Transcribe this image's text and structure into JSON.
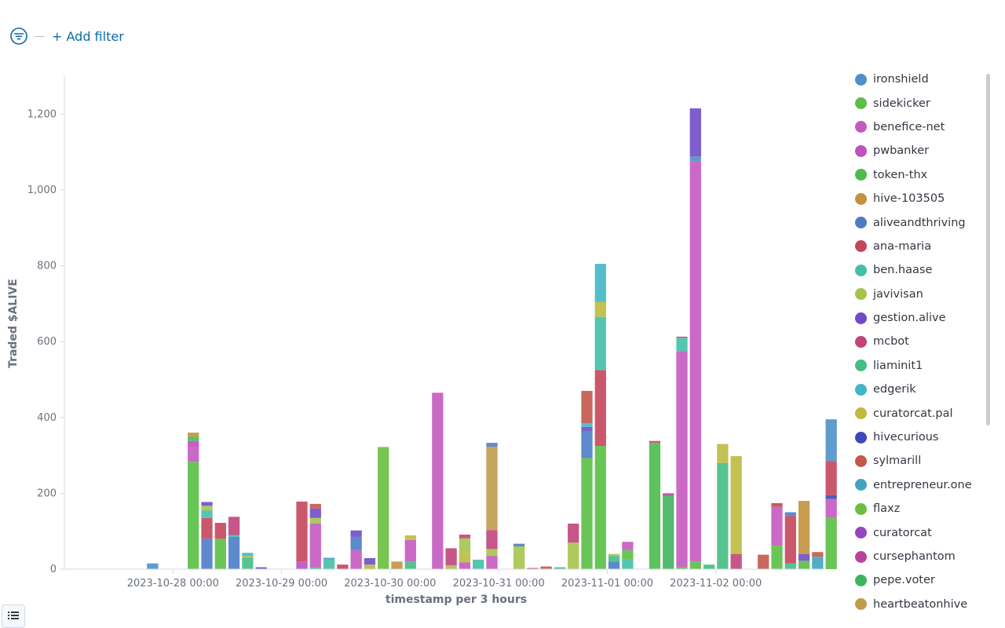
{
  "toolbar": {
    "add_filter_label": "+ Add filter"
  },
  "colors": [
    "#54B399",
    "#6092C0",
    "#D36086",
    "#9170B8",
    "#CA8EAE",
    "#D6BF57",
    "#B9A888",
    "#DA8B45",
    "#AA6556",
    "#E7664C"
  ],
  "chart_data": {
    "type": "bar",
    "stacked": true,
    "xlabel": "timestamp per 3 hours",
    "ylabel": "Traded $ALIVE",
    "ylim": [
      0,
      1300
    ],
    "y_ticks": [
      0,
      200,
      400,
      600,
      800,
      1000,
      1200
    ],
    "y_tick_labels": [
      "0",
      "200",
      "400",
      "600",
      "800",
      "1,000",
      "1,200"
    ],
    "x_start": "2023-10-27 00:00",
    "x_end": "2023-11-03 00:00",
    "x_tick_labels": [
      "2023-10-28 00:00",
      "2023-10-29 00:00",
      "2023-10-30 00:00",
      "2023-10-31 00:00",
      "2023-11-01 00:00",
      "2023-11-02 00:00"
    ],
    "legend_position": "right",
    "grid": false,
    "series": [
      {
        "name": "ironshield",
        "color": "#4E91C9"
      },
      {
        "name": "sidekicker",
        "color": "#5ABF45"
      },
      {
        "name": "benefice-net",
        "color": "#C559C0"
      },
      {
        "name": "pwbanker",
        "color": "#C04FBF"
      },
      {
        "name": "token-thx",
        "color": "#4CBC4C"
      },
      {
        "name": "hive-103505",
        "color": "#C4913F"
      },
      {
        "name": "aliveandthriving",
        "color": "#4C7CC6"
      },
      {
        "name": "ana-maria",
        "color": "#C4465C"
      },
      {
        "name": "ben.haase",
        "color": "#42BFA8"
      },
      {
        "name": "javivisan",
        "color": "#A5C34A"
      },
      {
        "name": "gestion.alive",
        "color": "#6F4CC6"
      },
      {
        "name": "mcbot",
        "color": "#C1447C"
      },
      {
        "name": "liaminit1",
        "color": "#44BE83"
      },
      {
        "name": "edgerik",
        "color": "#42B6C7"
      },
      {
        "name": "curatorcat.pal",
        "color": "#BDBA3E"
      },
      {
        "name": "hivecurious",
        "color": "#3C4AB8"
      },
      {
        "name": "sylmarill",
        "color": "#C2584A"
      },
      {
        "name": "entrepreneur.one",
        "color": "#40A4C0"
      },
      {
        "name": "flaxz",
        "color": "#6ABF3E"
      },
      {
        "name": "curatorcat",
        "color": "#9445C2"
      },
      {
        "name": "cursephantom",
        "color": "#B8439D"
      },
      {
        "name": "pepe.voter",
        "color": "#40B35E"
      },
      {
        "name": "heartbeatonhive",
        "color": "#C09B4C"
      }
    ],
    "bars": [
      {
        "x": "2023-10-27 18:00",
        "segments": [
          {
            "series": "ironshield",
            "value": 15
          }
        ]
      },
      {
        "x": "2023-10-28 03:00",
        "segments": [
          {
            "series": "sidekicker",
            "value": 283
          },
          {
            "series": "benefice-net",
            "value": 38
          },
          {
            "series": "pwbanker",
            "value": 17
          },
          {
            "series": "token-thx",
            "value": 12
          },
          {
            "series": "hive-103505",
            "value": 10
          }
        ]
      },
      {
        "x": "2023-10-28 06:00",
        "segments": [
          {
            "series": "aliveandthriving",
            "value": 80
          },
          {
            "series": "ana-maria",
            "value": 55
          },
          {
            "series": "ben.haase",
            "value": 20
          },
          {
            "series": "javivisan",
            "value": 12
          },
          {
            "series": "gestion.alive",
            "value": 10
          }
        ]
      },
      {
        "x": "2023-10-28 09:00",
        "segments": [
          {
            "series": "sidekicker",
            "value": 80
          },
          {
            "series": "ana-maria",
            "value": 42
          }
        ]
      },
      {
        "x": "2023-10-28 12:00",
        "segments": [
          {
            "series": "aliveandthriving",
            "value": 85
          },
          {
            "series": "ben.haase",
            "value": 5
          },
          {
            "series": "mcbot",
            "value": 48
          }
        ]
      },
      {
        "x": "2023-10-28 15:00",
        "segments": [
          {
            "series": "liaminit1",
            "value": 30
          },
          {
            "series": "javivisan",
            "value": 5
          },
          {
            "series": "edgerik",
            "value": 8
          }
        ]
      },
      {
        "x": "2023-10-28 18:00",
        "segments": [
          {
            "series": "gestion.alive",
            "value": 5
          }
        ]
      },
      {
        "x": "2023-10-29 03:00",
        "segments": [
          {
            "series": "pwbanker",
            "value": 20
          },
          {
            "series": "ana-maria",
            "value": 158
          }
        ]
      },
      {
        "x": "2023-10-29 06:00",
        "segments": [
          {
            "series": "liaminit1",
            "value": 5
          },
          {
            "series": "benefice-net",
            "value": 115
          },
          {
            "series": "javivisan",
            "value": 15
          },
          {
            "series": "gestion.alive",
            "value": 25
          },
          {
            "series": "sylmarill",
            "value": 12
          }
        ]
      },
      {
        "x": "2023-10-29 09:00",
        "segments": [
          {
            "series": "ben.haase",
            "value": 25
          },
          {
            "series": "entrepreneur.one",
            "value": 5
          }
        ]
      },
      {
        "x": "2023-10-29 12:00",
        "segments": [
          {
            "series": "ana-maria",
            "value": 12
          }
        ]
      },
      {
        "x": "2023-10-29 15:00",
        "segments": [
          {
            "series": "benefice-net",
            "value": 50
          },
          {
            "series": "aliveandthriving",
            "value": 35
          },
          {
            "series": "gestion.alive",
            "value": 17
          }
        ]
      },
      {
        "x": "2023-10-29 18:00",
        "segments": [
          {
            "series": "curatorcat.pal",
            "value": 12
          },
          {
            "series": "gestion.alive",
            "value": 17
          }
        ]
      },
      {
        "x": "2023-10-29 21:00",
        "segments": [
          {
            "series": "flaxz",
            "value": 322
          }
        ]
      },
      {
        "x": "2023-10-30 00:00",
        "segments": [
          {
            "series": "hive-103505",
            "value": 20
          }
        ]
      },
      {
        "x": "2023-10-30 03:00",
        "segments": [
          {
            "series": "liaminit1",
            "value": 20
          },
          {
            "series": "benefice-net",
            "value": 57
          },
          {
            "series": "curatorcat.pal",
            "value": 12
          }
        ]
      },
      {
        "x": "2023-10-30 09:00",
        "segments": [
          {
            "series": "benefice-net",
            "value": 465
          }
        ]
      },
      {
        "x": "2023-10-30 12:00",
        "segments": [
          {
            "series": "javivisan",
            "value": 10
          },
          {
            "series": "mcbot",
            "value": 45
          }
        ]
      },
      {
        "x": "2023-10-30 15:00",
        "segments": [
          {
            "series": "benefice-net",
            "value": 18
          },
          {
            "series": "curatorcat.pal",
            "value": 25
          },
          {
            "series": "javivisan",
            "value": 38
          },
          {
            "series": "mcbot",
            "value": 10
          }
        ]
      },
      {
        "x": "2023-10-30 18:00",
        "segments": [
          {
            "series": "ben.haase",
            "value": 25
          }
        ]
      },
      {
        "x": "2023-10-30 21:00",
        "segments": [
          {
            "series": "benefice-net",
            "value": 35
          },
          {
            "series": "javivisan",
            "value": 18
          },
          {
            "series": "mcbot",
            "value": 50
          },
          {
            "series": "heartbeatonhive",
            "value": 220
          },
          {
            "series": "aliveandthriving",
            "value": 10
          }
        ]
      },
      {
        "x": "2023-10-31 03:00",
        "segments": [
          {
            "series": "javivisan",
            "value": 60
          },
          {
            "series": "aliveandthriving",
            "value": 7
          }
        ]
      },
      {
        "x": "2023-10-31 06:00",
        "segments": [
          {
            "series": "mcbot",
            "value": 3
          }
        ]
      },
      {
        "x": "2023-10-31 09:00",
        "segments": [
          {
            "series": "sylmarill",
            "value": 7
          }
        ]
      },
      {
        "x": "2023-10-31 12:00",
        "segments": [
          {
            "series": "liaminit1",
            "value": 5
          }
        ]
      },
      {
        "x": "2023-10-31 15:00",
        "segments": [
          {
            "series": "javivisan",
            "value": 70
          },
          {
            "series": "mcbot",
            "value": 50
          }
        ]
      },
      {
        "x": "2023-10-31 18:00",
        "segments": [
          {
            "series": "sidekicker",
            "value": 293
          },
          {
            "series": "aliveandthriving",
            "value": 70
          },
          {
            "series": "gestion.alive",
            "value": 12
          },
          {
            "series": "edgerik",
            "value": 10
          },
          {
            "series": "sylmarill",
            "value": 85
          }
        ]
      },
      {
        "x": "2023-10-31 21:00",
        "segments": [
          {
            "series": "sidekicker",
            "value": 325
          },
          {
            "series": "ana-maria",
            "value": 200
          },
          {
            "series": "ben.haase",
            "value": 140
          },
          {
            "series": "curatorcat.pal",
            "value": 40
          },
          {
            "series": "edgerik",
            "value": 100
          }
        ]
      },
      {
        "x": "2023-11-01 00:00",
        "segments": [
          {
            "series": "aliveandthriving",
            "value": 20
          },
          {
            "series": "liaminit1",
            "value": 15
          },
          {
            "series": "javivisan",
            "value": 5
          }
        ]
      },
      {
        "x": "2023-11-01 03:00",
        "segments": [
          {
            "series": "ben.haase",
            "value": 25
          },
          {
            "series": "sidekicker",
            "value": 25
          },
          {
            "series": "benefice-net",
            "value": 22
          }
        ]
      },
      {
        "x": "2023-11-01 09:00",
        "segments": [
          {
            "series": "token-thx",
            "value": 333
          },
          {
            "series": "mcbot",
            "value": 5
          }
        ]
      },
      {
        "x": "2023-11-01 12:00",
        "segments": [
          {
            "series": "pepe.voter",
            "value": 193
          },
          {
            "series": "cursephantom",
            "value": 7
          }
        ]
      },
      {
        "x": "2023-11-01 15:00",
        "segments": [
          {
            "series": "sidekicker",
            "value": 5
          },
          {
            "series": "benefice-net",
            "value": 570
          },
          {
            "series": "ben.haase",
            "value": 35
          },
          {
            "series": "mcbot",
            "value": 3
          }
        ]
      },
      {
        "x": "2023-11-01 18:00",
        "segments": [
          {
            "series": "sidekicker",
            "value": 20
          },
          {
            "series": "benefice-net",
            "value": 1055
          },
          {
            "series": "ironshield",
            "value": 13
          },
          {
            "series": "gestion.alive",
            "value": 127
          }
        ]
      },
      {
        "x": "2023-11-01 21:00",
        "segments": [
          {
            "series": "liaminit1",
            "value": 12
          }
        ]
      },
      {
        "x": "2023-11-02 00:00",
        "segments": [
          {
            "series": "liaminit1",
            "value": 280
          },
          {
            "series": "curatorcat.pal",
            "value": 50
          }
        ]
      },
      {
        "x": "2023-11-02 03:00",
        "segments": [
          {
            "series": "mcbot",
            "value": 40
          },
          {
            "series": "curatorcat.pal",
            "value": 258
          }
        ]
      },
      {
        "x": "2023-11-02 09:00",
        "segments": [
          {
            "series": "sylmarill",
            "value": 38
          }
        ]
      },
      {
        "x": "2023-11-02 12:00",
        "segments": [
          {
            "series": "sidekicker",
            "value": 62
          },
          {
            "series": "benefice-net",
            "value": 102
          },
          {
            "series": "ana-maria",
            "value": 10
          }
        ]
      },
      {
        "x": "2023-11-02 15:00",
        "segments": [
          {
            "series": "liaminit1",
            "value": 15
          },
          {
            "series": "ana-maria",
            "value": 125
          },
          {
            "series": "aliveandthriving",
            "value": 10
          }
        ]
      },
      {
        "x": "2023-11-02 18:00",
        "segments": [
          {
            "series": "sidekicker",
            "value": 22
          },
          {
            "series": "gestion.alive",
            "value": 18
          },
          {
            "series": "hive-103505",
            "value": 140
          }
        ]
      },
      {
        "x": "2023-11-02 21:00",
        "segments": [
          {
            "series": "entrepreneur.one",
            "value": 33
          },
          {
            "series": "sylmarill",
            "value": 12
          }
        ]
      },
      {
        "x": "2023-11-03 00:00",
        "segments": [
          {
            "series": "sidekicker",
            "value": 135
          },
          {
            "series": "benefice-net",
            "value": 50
          },
          {
            "series": "hivecurious",
            "value": 10
          },
          {
            "series": "ana-maria",
            "value": 90
          },
          {
            "series": "ironshield",
            "value": 110
          }
        ]
      }
    ]
  }
}
